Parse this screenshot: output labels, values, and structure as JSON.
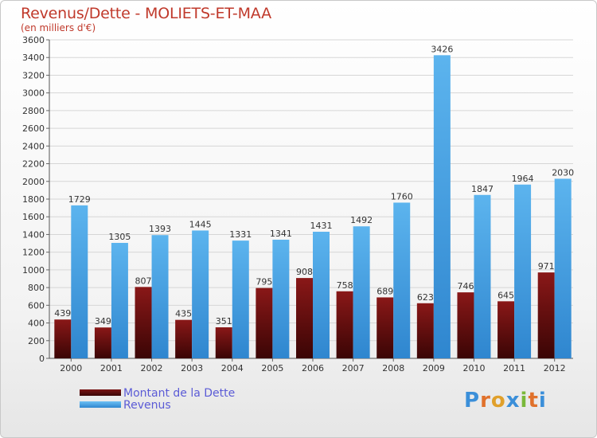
{
  "title": "Revenus/Dette - MOLIETS-ET-MAA",
  "subtitle": "(en milliers d'€)",
  "logo": "Proxiti",
  "colors": {
    "dette": "#7a1414",
    "revenus": "#4aa3e8",
    "title": "#c0392b",
    "legend_text": "#5b5bd6"
  },
  "chart_data": {
    "type": "bar",
    "categories": [
      "2000",
      "2001",
      "2002",
      "2003",
      "2004",
      "2005",
      "2006",
      "2007",
      "2008",
      "2009",
      "2010",
      "2011",
      "2012"
    ],
    "series": [
      {
        "name": "Montant de la Dette",
        "values": [
          439,
          349,
          807,
          435,
          351,
          795,
          908,
          758,
          689,
          623,
          746,
          645,
          971
        ]
      },
      {
        "name": "Revenus",
        "values": [
          1729,
          1305,
          1393,
          1445,
          1331,
          1341,
          1431,
          1492,
          1760,
          3426,
          1847,
          1964,
          2030
        ]
      }
    ],
    "ylim": [
      0,
      3600
    ],
    "yticks": [
      0,
      200,
      400,
      600,
      800,
      1000,
      1200,
      1400,
      1600,
      1800,
      2000,
      2200,
      2400,
      2600,
      2800,
      3000,
      3200,
      3400,
      3600
    ],
    "grid": true,
    "legend": "bottom-left"
  }
}
